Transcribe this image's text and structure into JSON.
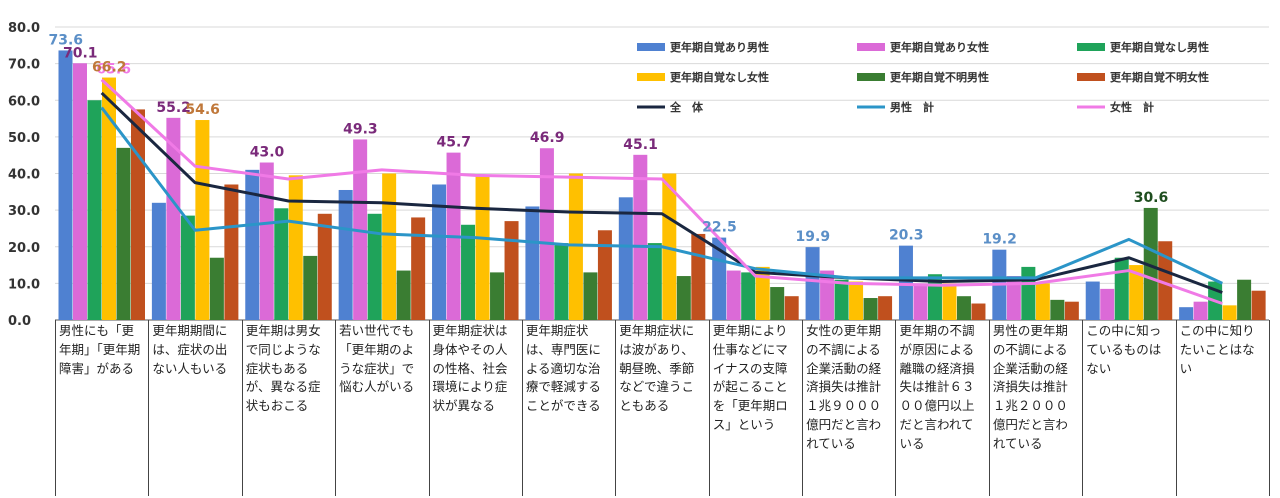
{
  "chart_data": {
    "type": "bar",
    "ylim": [
      0,
      80
    ],
    "yticks": [
      "0.0",
      "10.0",
      "20.0",
      "30.0",
      "40.0",
      "50.0",
      "60.0",
      "70.0",
      "80.0"
    ],
    "grid": true,
    "legend_position": "top-right",
    "categories": [
      "男性にも「更年期」「更年期障害」がある",
      "更年期期間には、症状の出ない人もいる",
      "更年期は男女で同じような症状もあるが、異なる症状もおこる",
      "若い世代でも「更年期のような症状」で悩む人がいる",
      "更年期症状は身体やその人の性格、社会環境により症状が異なる",
      "更年期症状は、専門医による適切な治療で軽減することができる",
      "更年期症状には波があり、朝昼晩、季節などで違うこともある",
      "更年期により仕事などにマイナスの支障が起こることを「更年期ロス」という",
      "女性の更年期の不調による企業活動の経済損失は推計１兆９０００億円だと言われている",
      "更年期の不調が原因による離職の経済損失は推計６３００億円以上だと言われている",
      "男性の更年期の不調による企業活動の経済損失は推計１兆２０００億円だと言われている",
      "この中に知っているものはない",
      "この中に知りたいことはない"
    ],
    "bar_series": [
      {
        "name": "更年期自覚あり男性",
        "color": "#4f81d1",
        "values": [
          73.6,
          32.0,
          41.0,
          35.5,
          37.0,
          31.0,
          33.5,
          22.5,
          19.9,
          20.3,
          19.2,
          10.5,
          3.5
        ]
      },
      {
        "name": "更年期自覚あり女性",
        "color": "#db6ad7",
        "values": [
          70.1,
          55.2,
          43.0,
          49.3,
          45.7,
          46.9,
          45.1,
          13.5,
          13.5,
          9.5,
          12.0,
          8.5,
          5.0
        ]
      },
      {
        "name": "更年期自覚なし男性",
        "color": "#1fa35a",
        "values": [
          60.0,
          28.5,
          30.5,
          29.0,
          26.0,
          21.0,
          21.0,
          13.0,
          11.0,
          12.5,
          14.5,
          17.0,
          10.5
        ]
      },
      {
        "name": "更年期自覚なし女性",
        "color": "#ffc000",
        "values": [
          66.2,
          54.6,
          39.5,
          40.0,
          39.5,
          40.0,
          40.0,
          14.5,
          10.5,
          10.0,
          10.0,
          15.0,
          4.0
        ]
      },
      {
        "name": "更年期自覚不明男性",
        "color": "#3a7d32",
        "values": [
          47.0,
          17.0,
          17.5,
          13.5,
          13.0,
          13.0,
          12.0,
          9.0,
          6.0,
          6.5,
          5.5,
          30.6,
          11.0
        ]
      },
      {
        "name": "更年期自覚不明女性",
        "color": "#c0501e",
        "values": [
          57.5,
          37.0,
          29.0,
          28.0,
          27.0,
          24.5,
          23.5,
          6.5,
          6.5,
          4.5,
          5.0,
          21.5,
          8.0
        ]
      }
    ],
    "line_series": [
      {
        "name": "全　体",
        "color": "#1a2740",
        "values": [
          62.0,
          37.5,
          32.5,
          32.0,
          30.5,
          29.5,
          29.0,
          13.0,
          11.5,
          10.5,
          11.0,
          17.0,
          7.5
        ]
      },
      {
        "name": "男性　計",
        "color": "#2b95c8",
        "values": [
          58.0,
          24.5,
          27.0,
          23.5,
          22.5,
          20.5,
          20.0,
          14.0,
          11.5,
          11.5,
          11.5,
          22.0,
          10.0
        ]
      },
      {
        "name": "女性　計",
        "color": "#f07ae6",
        "values": [
          65.6,
          42.0,
          38.5,
          41.0,
          39.5,
          39.0,
          38.5,
          12.0,
          10.0,
          9.5,
          10.0,
          13.5,
          4.5
        ]
      }
    ],
    "data_labels": [
      {
        "text": "73.6",
        "series": 0,
        "category": 0,
        "color": "#5b8fc7"
      },
      {
        "text": "70.1",
        "series": 1,
        "category": 0,
        "color": "#7a2a7a"
      },
      {
        "text": "65.6",
        "line": 2,
        "category": 0,
        "color": "#f07ae6"
      },
      {
        "text": "66.2",
        "series": 3,
        "category": 0,
        "color": "#c0783a"
      },
      {
        "text": "55.2",
        "series": 1,
        "category": 1,
        "color": "#7a2a7a"
      },
      {
        "text": "54.6",
        "series": 3,
        "category": 1,
        "color": "#c0783a"
      },
      {
        "text": "43.0",
        "series": 1,
        "category": 2,
        "color": "#7a2a7a"
      },
      {
        "text": "49.3",
        "series": 1,
        "category": 3,
        "color": "#7a2a7a"
      },
      {
        "text": "45.7",
        "series": 1,
        "category": 4,
        "color": "#7a2a7a"
      },
      {
        "text": "46.9",
        "series": 1,
        "category": 5,
        "color": "#7a2a7a"
      },
      {
        "text": "45.1",
        "series": 1,
        "category": 6,
        "color": "#7a2a7a"
      },
      {
        "text": "22.5",
        "series": 0,
        "category": 7,
        "color": "#5b8fc7"
      },
      {
        "text": "19.9",
        "series": 0,
        "category": 8,
        "color": "#5b8fc7"
      },
      {
        "text": "20.3",
        "series": 0,
        "category": 9,
        "color": "#5b8fc7"
      },
      {
        "text": "19.2",
        "series": 0,
        "category": 10,
        "color": "#5b8fc7"
      },
      {
        "text": "30.6",
        "series": 4,
        "category": 11,
        "color": "#1e4d1e"
      }
    ]
  }
}
